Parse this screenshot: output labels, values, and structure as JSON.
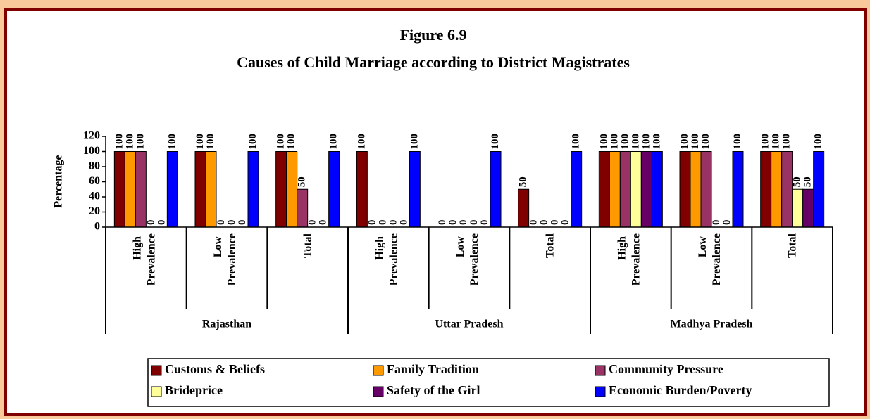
{
  "chart_data": {
    "type": "bar",
    "title": "Figure 6.9",
    "subtitle": "Causes of Child Marriage according to District Magistrates",
    "y_label": "Percentage",
    "categories": [
      "High Prevalence",
      "Low Prevalence",
      "Total",
      "High Prevalence",
      "Low Prevalence",
      "Total",
      "High Prevalence",
      "Low Prevalence",
      "Total"
    ],
    "category_groups": [
      "Rajasthan",
      "Uttar Pradesh",
      "Madhya Pradesh"
    ],
    "series": [
      {
        "name": "Customs & Beliefs",
        "color": "#800000",
        "values": [
          100,
          100,
          100,
          100,
          0,
          50,
          100,
          100,
          100
        ]
      },
      {
        "name": "Family Tradition",
        "color": "#ff9900",
        "values": [
          100,
          100,
          100,
          0,
          0,
          0,
          100,
          100,
          100
        ]
      },
      {
        "name": "Community Pressure",
        "color": "#993366",
        "values": [
          100,
          0,
          50,
          0,
          0,
          0,
          100,
          100,
          100
        ]
      },
      {
        "name": "Brideprice",
        "color": "#ffff99",
        "values": [
          0,
          0,
          0,
          0,
          0,
          0,
          100,
          0,
          50
        ]
      },
      {
        "name": "Safety of the Girl",
        "color": "#660066",
        "values": [
          0,
          0,
          0,
          0,
          0,
          0,
          100,
          0,
          50
        ]
      },
      {
        "name": "Economic Burden/Poverty",
        "color": "#0000ff",
        "values": [
          100,
          100,
          100,
          100,
          100,
          100,
          100,
          100,
          100
        ]
      }
    ],
    "ylim": [
      0,
      120
    ],
    "yticks": [
      0,
      20,
      40,
      60,
      80,
      100,
      120
    ],
    "grid": false
  }
}
